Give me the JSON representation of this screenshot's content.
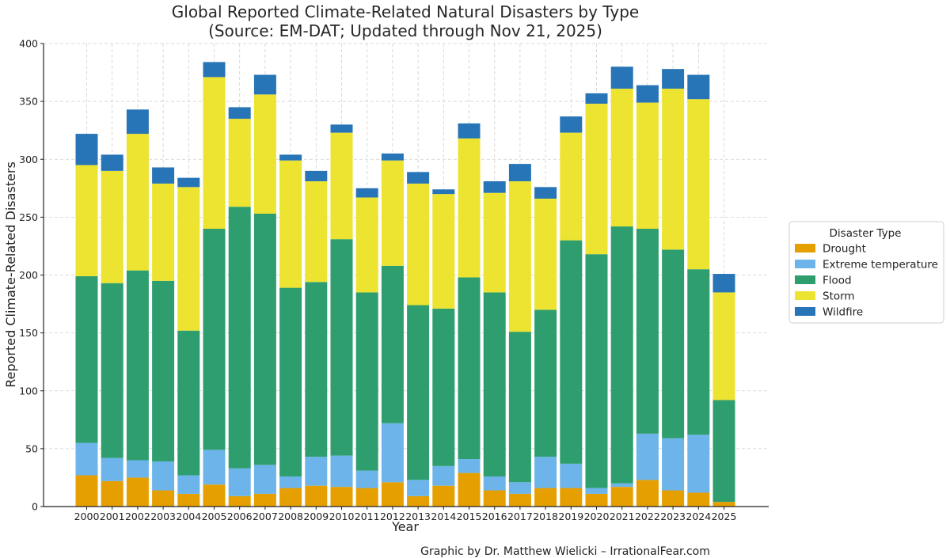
{
  "chart_data": {
    "type": "bar",
    "stacked": true,
    "title_line1": "Global Reported Climate-Related Natural Disasters by Type",
    "title_line2": "(Source: EM-DAT; Updated through Nov 21, 2025)",
    "xlabel": "Year",
    "ylabel": "Reported Climate-Related Disasters",
    "ylim": [
      0,
      400
    ],
    "yticks": [
      0,
      50,
      100,
      150,
      200,
      250,
      300,
      350,
      400
    ],
    "grid": true,
    "legend_title": "Disaster Type",
    "legend_position": "right",
    "credit": "Graphic by Dr. Matthew Wielicki – IrrationalFear.com",
    "categories": [
      "2000",
      "2001",
      "2002",
      "2003",
      "2004",
      "2005",
      "2006",
      "2007",
      "2008",
      "2009",
      "2010",
      "2011",
      "2012",
      "2013",
      "2014",
      "2015",
      "2016",
      "2017",
      "2018",
      "2019",
      "2020",
      "2021",
      "2022",
      "2023",
      "2024",
      "2025"
    ],
    "series": [
      {
        "name": "Drought",
        "color": "#e69f00",
        "values": [
          27,
          22,
          25,
          14,
          11,
          19,
          9,
          11,
          16,
          18,
          17,
          16,
          21,
          9,
          18,
          29,
          14,
          11,
          16,
          16,
          11,
          17,
          23,
          14,
          12,
          4
        ]
      },
      {
        "name": "Extreme temperature",
        "color": "#6cb4ea",
        "values": [
          28,
          20,
          15,
          25,
          16,
          30,
          24,
          25,
          10,
          25,
          27,
          15,
          51,
          14,
          17,
          12,
          12,
          10,
          27,
          21,
          5,
          3,
          40,
          45,
          50,
          0
        ]
      },
      {
        "name": "Flood",
        "color": "#2e9e6f",
        "values": [
          144,
          151,
          164,
          156,
          125,
          191,
          226,
          217,
          163,
          151,
          187,
          154,
          136,
          151,
          136,
          157,
          159,
          130,
          127,
          193,
          202,
          222,
          177,
          163,
          143,
          88
        ]
      },
      {
        "name": "Storm",
        "color": "#ede331",
        "values": [
          96,
          97,
          118,
          84,
          124,
          131,
          76,
          103,
          110,
          87,
          92,
          82,
          91,
          105,
          99,
          120,
          86,
          130,
          96,
          93,
          130,
          119,
          109,
          139,
          147,
          93
        ]
      },
      {
        "name": "Wildfire",
        "color": "#2775b7",
        "values": [
          27,
          14,
          21,
          14,
          8,
          13,
          10,
          17,
          5,
          9,
          7,
          8,
          6,
          10,
          4,
          13,
          10,
          15,
          10,
          14,
          9,
          19,
          15,
          17,
          21,
          16
        ]
      }
    ]
  }
}
